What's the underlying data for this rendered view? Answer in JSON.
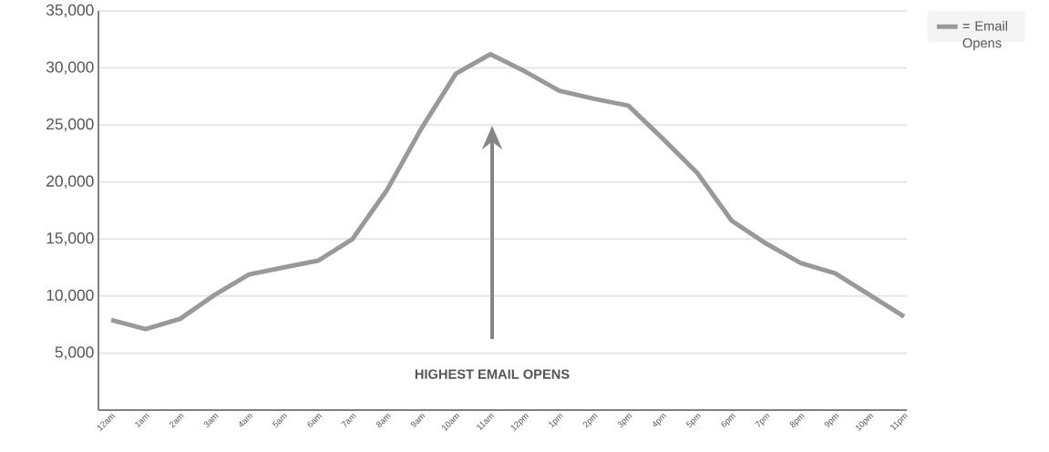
{
  "chart_data": {
    "type": "line",
    "categories": [
      "12am",
      "1am",
      "2am",
      "3am",
      "4am",
      "5am",
      "6am",
      "7am",
      "8am",
      "9am",
      "10am",
      "11am",
      "12pm",
      "1pm",
      "2pm",
      "3pm",
      "4pm",
      "5pm",
      "6pm",
      "7pm",
      "8pm",
      "9pm",
      "10pm",
      "11pm"
    ],
    "series": [
      {
        "name": "= Email Opens",
        "color": "#999999",
        "values": [
          7900,
          7100,
          8000,
          10100,
          11900,
          12500,
          13100,
          15000,
          19300,
          24700,
          29500,
          31200,
          29700,
          28000,
          27300,
          26700,
          23800,
          20800,
          16600,
          14600,
          12900,
          12000,
          10100,
          8200
        ]
      }
    ],
    "ylim": [
      0,
      35000
    ],
    "yticks": [
      {
        "value": 5000,
        "label": "5,000"
      },
      {
        "value": 10000,
        "label": "10,000"
      },
      {
        "value": 15000,
        "label": "15,000"
      },
      {
        "value": 20000,
        "label": "20,000"
      },
      {
        "value": 25000,
        "label": "25,000"
      },
      {
        "value": 30000,
        "label": "30,000"
      },
      {
        "value": 35000,
        "label": "35,000"
      }
    ],
    "grid": "y",
    "legend": "top right",
    "marker": "none",
    "line_style": "solid",
    "annotations": [
      "HIGHEST EMAIL OPENS"
    ]
  }
}
